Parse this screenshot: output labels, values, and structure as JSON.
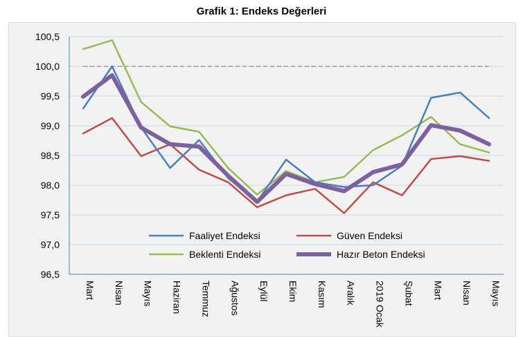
{
  "chart_data": {
    "type": "line",
    "title": "Grafik 1: Endeks Değerleri",
    "categories": [
      "Mart",
      "Nisan",
      "Mayıs",
      "Haziran",
      "Temmuz",
      "Ağustos",
      "Eylül",
      "Ekim",
      "Kasım",
      "Aralık",
      "2019 Ocak",
      "Şubat",
      "Mart",
      "Nisan",
      "Mayıs"
    ],
    "ylim": [
      96.5,
      100.5
    ],
    "yticks": [
      "96,5",
      "97,0",
      "97,5",
      "98,0",
      "98,5",
      "99,0",
      "99,5",
      "100,0",
      "100,5"
    ],
    "grid": true,
    "reference_line": 100.0,
    "legend_placement": "bottom-center",
    "series": [
      {
        "name": "Faaliyet Endeksi",
        "color": "#4a7ebb",
        "values": [
          99.29,
          100.0,
          98.97,
          98.29,
          98.76,
          98.12,
          97.72,
          98.43,
          98.05,
          97.97,
          98.0,
          98.33,
          99.47,
          99.56,
          99.13
        ]
      },
      {
        "name": "Güven Endeksi",
        "color": "#be4b48",
        "values": [
          98.87,
          99.13,
          98.49,
          98.69,
          98.26,
          98.05,
          97.63,
          97.83,
          97.94,
          97.53,
          98.05,
          97.83,
          98.44,
          98.49,
          98.41
        ]
      },
      {
        "name": "Beklenti Endeksi",
        "color": "#98b954",
        "values": [
          100.29,
          100.44,
          99.4,
          98.99,
          98.9,
          98.29,
          97.84,
          98.24,
          98.05,
          98.14,
          98.59,
          98.84,
          99.15,
          98.69,
          98.55
        ]
      },
      {
        "name": "Hazır Beton Endeksi",
        "color": "#7d60a0",
        "values": [
          99.49,
          99.85,
          98.97,
          98.69,
          98.65,
          98.16,
          97.72,
          98.19,
          98.02,
          97.9,
          98.22,
          98.35,
          99.01,
          98.92,
          98.69
        ]
      }
    ]
  }
}
